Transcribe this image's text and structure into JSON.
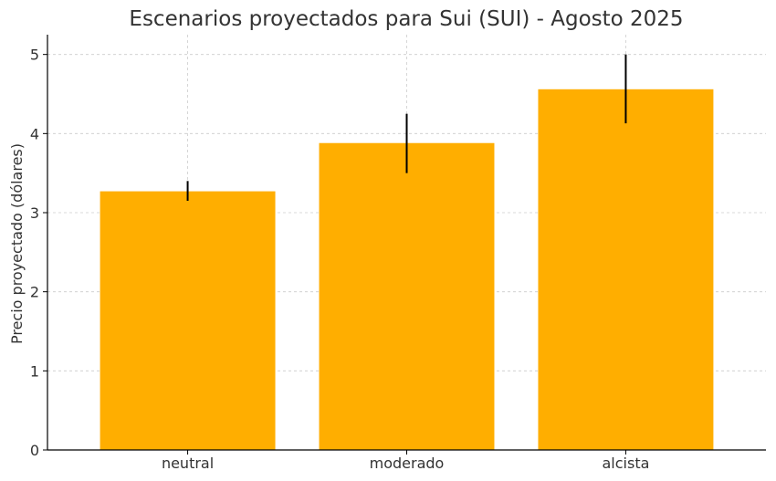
{
  "chart_data": {
    "type": "bar",
    "title": "Escenarios proyectados para Sui (SUI) - Agosto 2025",
    "xlabel": "",
    "ylabel": "Precio proyectado (dólares)",
    "categories": [
      "neutral",
      "moderado",
      "alcista"
    ],
    "values": [
      3.27,
      3.88,
      4.56
    ],
    "error_low": [
      3.15,
      3.5,
      4.13
    ],
    "error_high": [
      3.4,
      4.25,
      5.0
    ],
    "ylim": [
      0,
      5.25
    ],
    "yticks": [
      0,
      1,
      2,
      3,
      4,
      5
    ],
    "grid": true,
    "colors": {
      "bar": "#FFAE00",
      "error_bar": "#000000",
      "grid": "#cccccc",
      "axis": "#000000"
    }
  }
}
